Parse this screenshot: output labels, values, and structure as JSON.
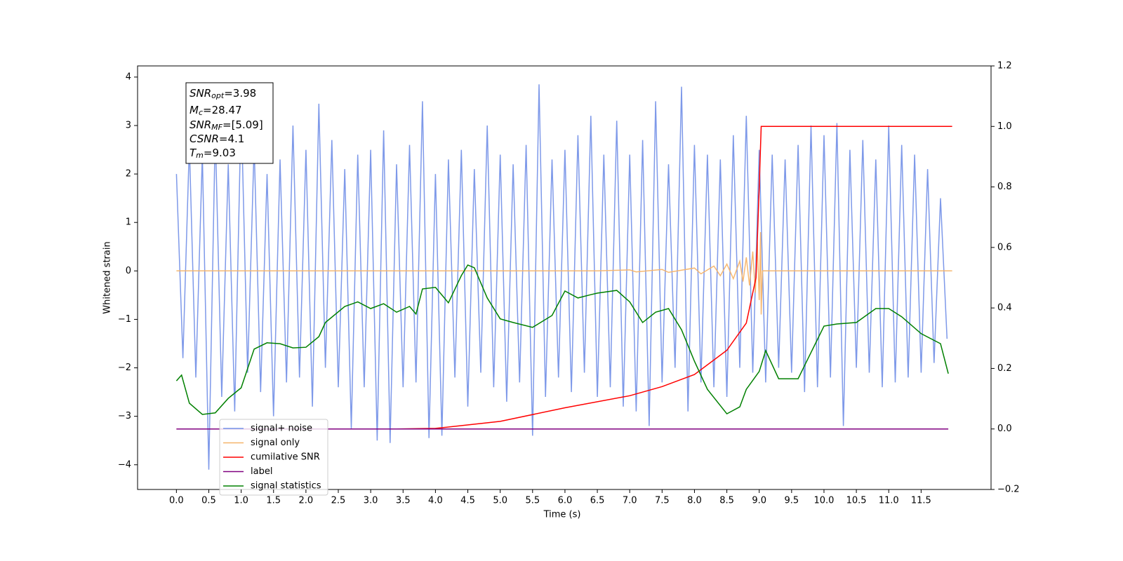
{
  "chart_data": {
    "type": "line",
    "xlabel": "Time (s)",
    "ylabel": "Whitened strain",
    "xlim": [
      -0.6,
      12.58
    ],
    "ylim": [
      -4.51,
      4.23
    ],
    "y2lim": [
      -0.2,
      1.2
    ],
    "xticks": [
      {
        "value": 0,
        "label": "0.0"
      },
      {
        "value": 0.5,
        "label": "0.5"
      },
      {
        "value": 1,
        "label": "1.0"
      },
      {
        "value": 1.5,
        "label": "1.5"
      },
      {
        "value": 2,
        "label": "2.0"
      },
      {
        "value": 2.5,
        "label": "2.5"
      },
      {
        "value": 3,
        "label": "3.0"
      },
      {
        "value": 3.5,
        "label": "3.5"
      },
      {
        "value": 4,
        "label": "4.0"
      },
      {
        "value": 4.5,
        "label": "4.5"
      },
      {
        "value": 5,
        "label": "5.0"
      },
      {
        "value": 5.5,
        "label": "5.5"
      },
      {
        "value": 6,
        "label": "6.0"
      },
      {
        "value": 6.5,
        "label": "6.5"
      },
      {
        "value": 7,
        "label": "7.0"
      },
      {
        "value": 7.5,
        "label": "7.5"
      },
      {
        "value": 8,
        "label": "8.0"
      },
      {
        "value": 8.5,
        "label": "8.5"
      },
      {
        "value": 9,
        "label": "9.0"
      },
      {
        "value": 9.5,
        "label": "9.5"
      },
      {
        "value": 10,
        "label": "10.0"
      },
      {
        "value": 10.5,
        "label": "10.5"
      },
      {
        "value": 11,
        "label": "11.0"
      },
      {
        "value": 11.5,
        "label": "11.5"
      }
    ],
    "yticks": [
      {
        "value": -4,
        "label": "−4"
      },
      {
        "value": -3,
        "label": "−3"
      },
      {
        "value": -2,
        "label": "−2"
      },
      {
        "value": -1,
        "label": "−1"
      },
      0,
      1,
      2,
      3,
      4
    ],
    "y2ticks": [
      {
        "value": -0.2,
        "label": "−0.2"
      },
      {
        "value": 0,
        "label": "0.0"
      },
      {
        "value": 0.2,
        "label": "0.2"
      },
      {
        "value": 0.4,
        "label": "0.4"
      },
      {
        "value": 0.6,
        "label": "0.6"
      },
      {
        "value": 0.8,
        "label": "0.8"
      },
      {
        "value": 1,
        "label": "1.0"
      },
      {
        "value": 1.2,
        "label": "1.2"
      }
    ],
    "legend_loc": "lower left",
    "annotations": [
      {
        "symbol": "SNR",
        "sub": "opt",
        "text": "=3.98"
      },
      {
        "symbol": "M",
        "sub": "c",
        "text": "=28.47"
      },
      {
        "symbol": "SNR",
        "sub": "MF",
        "text": "=[5.09]"
      },
      {
        "symbol": "CSNR",
        "sub": "",
        "text": "=4.1"
      },
      {
        "symbol": "T",
        "sub": "m",
        "text": "=9.03"
      }
    ],
    "series": [
      {
        "name": "signal+ noise",
        "color": "#7793e8",
        "axis": "y",
        "x": [
          0,
          0.1,
          0.2,
          0.3,
          0.4,
          0.5,
          0.6,
          0.7,
          0.8,
          0.9,
          1,
          1.1,
          1.2,
          1.3,
          1.4,
          1.5,
          1.6,
          1.7,
          1.8,
          1.9,
          2,
          2.1,
          2.2,
          2.3,
          2.4,
          2.5,
          2.6,
          2.7,
          2.8,
          2.9,
          3,
          3.1,
          3.2,
          3.3,
          3.4,
          3.5,
          3.6,
          3.7,
          3.8,
          3.9,
          4,
          4.1,
          4.2,
          4.3,
          4.4,
          4.5,
          4.6,
          4.7,
          4.8,
          4.9,
          5,
          5.1,
          5.2,
          5.3,
          5.4,
          5.5,
          5.6,
          5.7,
          5.8,
          5.9,
          6,
          6.1,
          6.2,
          6.3,
          6.4,
          6.5,
          6.6,
          6.7,
          6.8,
          6.9,
          7,
          7.1,
          7.2,
          7.3,
          7.4,
          7.5,
          7.6,
          7.7,
          7.8,
          7.9,
          8,
          8.1,
          8.2,
          8.3,
          8.4,
          8.5,
          8.6,
          8.7,
          8.8,
          8.9,
          9,
          9.1,
          9.2,
          9.3,
          9.4,
          9.5,
          9.6,
          9.7,
          9.8,
          9.9,
          10,
          10.1,
          10.2,
          10.3,
          10.4,
          10.5,
          10.6,
          10.7,
          10.8,
          10.9,
          11,
          11.1,
          11.2,
          11.3,
          11.4,
          11.5,
          11.6,
          11.7,
          11.8,
          11.9
        ],
        "values": [
          2.0,
          -1.8,
          2.6,
          -2.2,
          2.4,
          -4.1,
          2.9,
          -2.6,
          2.2,
          -2.9,
          3.4,
          -2.1,
          2.6,
          -2.5,
          2.0,
          -3.0,
          2.3,
          -2.3,
          3.0,
          -2.2,
          2.5,
          -2.8,
          3.45,
          -2.0,
          2.7,
          -2.4,
          2.1,
          -3.25,
          2.4,
          -2.4,
          2.5,
          -3.5,
          2.9,
          -3.55,
          2.2,
          -2.4,
          2.6,
          -2.3,
          3.5,
          -3.45,
          2.0,
          -3.4,
          2.3,
          -2.2,
          2.5,
          -2.8,
          2.1,
          -2.1,
          3.0,
          -2.4,
          2.4,
          -2.7,
          2.2,
          -2.3,
          2.6,
          -3.4,
          3.85,
          -2.6,
          2.3,
          -2.2,
          2.5,
          -2.5,
          2.8,
          -2.1,
          3.2,
          -2.6,
          2.4,
          -2.4,
          3.1,
          -2.8,
          2.4,
          -2.9,
          2.7,
          -3.2,
          3.5,
          -2.3,
          2.2,
          -2.0,
          3.8,
          -2.9,
          2.6,
          -2.3,
          2.4,
          -2.4,
          2.3,
          -2.6,
          2.8,
          -2.0,
          3.2,
          -2.1,
          2.5,
          -2.3,
          2.4,
          -2.0,
          2.3,
          -2.1,
          2.6,
          -2.5,
          3.0,
          -2.4,
          2.8,
          -2.2,
          3.05,
          -3.2,
          2.5,
          -2.0,
          2.7,
          -2.1,
          2.3,
          -2.4,
          3.0,
          -2.3,
          2.6,
          -2.2,
          2.4,
          -2.1,
          2.1,
          -1.9,
          1.5,
          -1.4
        ]
      },
      {
        "name": "signal only",
        "color": "#f5b46a",
        "axis": "y",
        "x": [
          0,
          6.5,
          7.0,
          7.1,
          7.5,
          7.6,
          8.0,
          8.1,
          8.3,
          8.4,
          8.5,
          8.6,
          8.7,
          8.75,
          8.8,
          8.85,
          8.9,
          8.94,
          8.97,
          9.0,
          9.02,
          9.03,
          9.05,
          11.98
        ],
        "values": [
          0,
          0,
          0.02,
          -0.02,
          0.03,
          -0.03,
          0.06,
          -0.06,
          0.1,
          -0.1,
          0.14,
          -0.16,
          0.2,
          -0.22,
          0.28,
          -0.3,
          0.4,
          -0.45,
          0.6,
          -0.6,
          0.8,
          -0.9,
          0,
          0
        ]
      },
      {
        "name": "cumilative SNR",
        "color": "#ff0000",
        "axis": "y2",
        "x": [
          0,
          3.4,
          4.0,
          5,
          6,
          7,
          7.5,
          8,
          8.5,
          8.8,
          8.95,
          9.0,
          9.03,
          11.98
        ],
        "values": [
          0,
          0,
          0.002,
          0.025,
          0.07,
          0.11,
          0.14,
          0.18,
          0.26,
          0.35,
          0.5,
          0.8,
          1.0,
          1.0
        ]
      },
      {
        "name": "label",
        "color": "#800080",
        "axis": "y2",
        "x": [
          0,
          11.92
        ],
        "values": [
          0,
          0
        ]
      },
      {
        "name": "signal statistics",
        "color": "#008000",
        "axis": "y2",
        "x": [
          0,
          0.08,
          0.2,
          0.4,
          0.6,
          0.8,
          1.0,
          1.2,
          1.4,
          1.6,
          1.8,
          2.0,
          2.2,
          2.3,
          2.6,
          2.8,
          3.0,
          3.2,
          3.4,
          3.6,
          3.7,
          3.8,
          4.0,
          4.2,
          4.4,
          4.5,
          4.6,
          4.8,
          5.0,
          5.2,
          5.5,
          5.8,
          6.0,
          6.2,
          6.4,
          6.5,
          6.8,
          7.0,
          7.2,
          7.4,
          7.6,
          7.8,
          8.0,
          8.2,
          8.5,
          8.7,
          8.8,
          9.0,
          9.1,
          9.3,
          9.6,
          10.0,
          10.2,
          10.5,
          10.8,
          11.0,
          11.2,
          11.5,
          11.8,
          11.92
        ],
        "values": [
          0.159,
          0.178,
          0.085,
          0.048,
          0.053,
          0.101,
          0.136,
          0.264,
          0.285,
          0.282,
          0.268,
          0.27,
          0.305,
          0.352,
          0.405,
          0.42,
          0.398,
          0.414,
          0.386,
          0.405,
          0.38,
          0.463,
          0.468,
          0.417,
          0.507,
          0.542,
          0.533,
          0.433,
          0.364,
          0.352,
          0.336,
          0.375,
          0.456,
          0.433,
          0.444,
          0.449,
          0.458,
          0.42,
          0.352,
          0.386,
          0.398,
          0.328,
          0.224,
          0.131,
          0.05,
          0.073,
          0.131,
          0.19,
          0.259,
          0.166,
          0.166,
          0.34,
          0.347,
          0.352,
          0.398,
          0.398,
          0.371,
          0.315,
          0.282,
          0.183
        ]
      }
    ]
  }
}
